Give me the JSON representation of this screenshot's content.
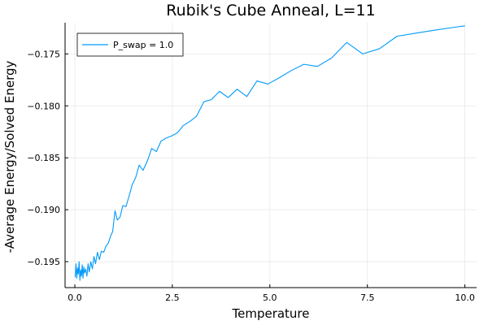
{
  "chart_data": {
    "type": "line",
    "title": "Rubik's Cube Anneal, L=11",
    "xlabel": "Temperature",
    "ylabel": "-Average Energy/Solved Energy",
    "xlim": [
      -0.25,
      10.3
    ],
    "ylim": [
      -0.1975,
      -0.172
    ],
    "x_ticks": [
      0.0,
      2.5,
      5.0,
      7.5,
      10.0
    ],
    "x_tick_labels": [
      "0.0",
      "2.5",
      "5.0",
      "7.5",
      "10.0"
    ],
    "y_ticks": [
      -0.195,
      -0.19,
      -0.185,
      -0.18,
      -0.175
    ],
    "y_tick_labels": [
      "−0.195",
      "−0.190",
      "−0.185",
      "−0.180",
      "−0.175"
    ],
    "grid": true,
    "legend_position": "top-left",
    "series": [
      {
        "name": "P_swap = 1.0",
        "color": "#009AFA",
        "x": [
          0.01,
          0.03,
          0.05,
          0.07,
          0.09,
          0.11,
          0.13,
          0.15,
          0.17,
          0.19,
          0.21,
          0.23,
          0.25,
          0.28,
          0.31,
          0.34,
          0.37,
          0.41,
          0.45,
          0.49,
          0.53,
          0.58,
          0.63,
          0.68,
          0.74,
          0.8,
          0.86,
          0.92,
          0.97,
          1.03,
          1.09,
          1.16,
          1.23,
          1.31,
          1.39,
          1.47,
          1.56,
          1.65,
          1.75,
          1.86,
          1.97,
          2.09,
          2.21,
          2.34,
          2.48,
          2.63,
          2.78,
          2.95,
          3.12,
          3.31,
          3.5,
          3.71,
          3.93,
          4.16,
          4.41,
          4.67,
          4.95,
          5.24,
          5.55,
          5.87,
          6.22,
          6.58,
          6.97,
          7.38,
          7.81,
          8.26,
          8.74,
          9.25,
          9.79,
          10.0
        ],
        "y": [
          -0.1965,
          -0.1952,
          -0.1966,
          -0.1956,
          -0.1962,
          -0.195,
          -0.1968,
          -0.1958,
          -0.1964,
          -0.1953,
          -0.1966,
          -0.1955,
          -0.1961,
          -0.1957,
          -0.1964,
          -0.1952,
          -0.196,
          -0.195,
          -0.1957,
          -0.1945,
          -0.1952,
          -0.1941,
          -0.1948,
          -0.194,
          -0.1941,
          -0.1935,
          -0.1932,
          -0.1925,
          -0.1921,
          -0.1901,
          -0.191,
          -0.1907,
          -0.1896,
          -0.1897,
          -0.1887,
          -0.1876,
          -0.1869,
          -0.1857,
          -0.1862,
          -0.1853,
          -0.1841,
          -0.1844,
          -0.1834,
          -0.1831,
          -0.1829,
          -0.1826,
          -0.1819,
          -0.1815,
          -0.181,
          -0.1796,
          -0.1794,
          -0.1786,
          -0.1792,
          -0.1784,
          -0.1791,
          -0.1776,
          -0.1779,
          -0.1773,
          -0.1766,
          -0.176,
          -0.1762,
          -0.1754,
          -0.1739,
          -0.175,
          -0.1745,
          -0.1733,
          -0.173,
          -0.1727,
          -0.1724,
          -0.1723
        ]
      }
    ]
  }
}
